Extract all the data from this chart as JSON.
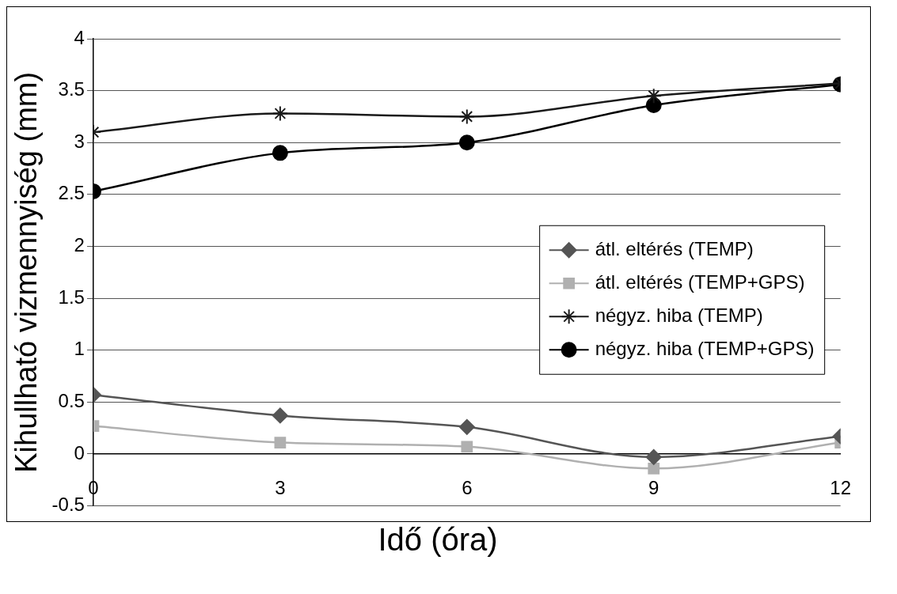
{
  "chart_data": {
    "type": "line",
    "xlabel": "Idő (óra)",
    "ylabel": "Kihullható vizmennyiség (mm)",
    "x": [
      0,
      3,
      6,
      9,
      12
    ],
    "series": [
      {
        "name": "átl. eltérés (TEMP)",
        "color": "#555555",
        "marker": "diamond",
        "values": [
          0.57,
          0.37,
          0.26,
          -0.03,
          0.17
        ]
      },
      {
        "name": "átl. eltérés (TEMP+GPS)",
        "color": "#b0b0b0",
        "marker": "square",
        "values": [
          0.27,
          0.11,
          0.07,
          -0.14,
          0.11
        ]
      },
      {
        "name": "négyz. hiba (TEMP)",
        "color": "#1a1a1a",
        "marker": "cross",
        "values": [
          3.1,
          3.28,
          3.25,
          3.45,
          3.57
        ]
      },
      {
        "name": "négyz. hiba (TEMP+GPS)",
        "color": "#000000",
        "marker": "circle",
        "values": [
          2.53,
          2.9,
          3.0,
          3.36,
          3.56
        ]
      }
    ],
    "xlim": [
      0,
      12
    ],
    "xticks": [
      0,
      3,
      6,
      9,
      12
    ],
    "ylim": [
      -0.5,
      4
    ],
    "yticks": [
      -0.5,
      0,
      0.5,
      1,
      1.5,
      2,
      2.5,
      3,
      3.5,
      4
    ],
    "grid": "y",
    "legend": "right",
    "line_style": "solid"
  }
}
